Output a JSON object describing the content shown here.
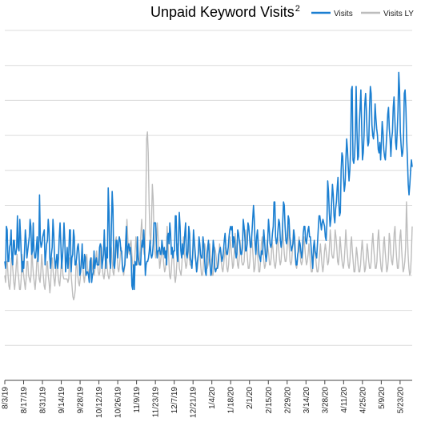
{
  "chart_data": {
    "type": "line",
    "title": "Unpaid Keyword Visits",
    "title_superscript": "2",
    "xlabel": "",
    "ylabel": "",
    "grid": "horizontal",
    "legend_position": "top-right",
    "ylim": [
      0,
      10
    ],
    "x_tick_labels": [
      "8/3/19",
      "8/17/19",
      "8/31/19",
      "9/14/19",
      "9/28/19",
      "10/12/19",
      "10/26/19",
      "11/9/19",
      "11/23/19",
      "12/7/19",
      "12/21/19",
      "1/4/20",
      "1/18/20",
      "2/1/20",
      "2/15/20",
      "2/29/20",
      "3/14/20",
      "3/28/20",
      "4/11/20",
      "4/25/20",
      "5/9/20",
      "5/23/20"
    ],
    "x_start": "8/3/19",
    "x_end": "6/1/20",
    "series": [
      {
        "name": "Visits",
        "color": "#1b7fd1",
        "values": [
          3.4,
          3.2,
          4.4,
          4.3,
          3.4,
          3.4,
          3.8,
          3.9,
          4.3,
          3.5,
          3.3,
          4.0,
          4.0,
          3.6,
          3.6,
          3.8,
          4.7,
          3.8,
          3.7,
          4.6,
          4.1,
          3.5,
          3.1,
          3.4,
          3.2,
          3.7,
          4.3,
          4.0,
          3.5,
          3.7,
          3.9,
          4.1,
          4.6,
          4.4,
          3.6,
          3.7,
          4.5,
          3.7,
          3.5,
          3.5,
          3.8,
          4.1,
          3.4,
          3.8,
          5.3,
          4.0,
          3.8,
          3.9,
          4.1,
          4.2,
          4.3,
          3.3,
          3.6,
          3.9,
          4.0,
          4.6,
          4.3,
          3.5,
          3.2,
          3.6,
          3.8,
          4.6,
          4.2,
          3.5,
          3.2,
          3.4,
          3.6,
          3.2,
          3.5,
          4.1,
          4.5,
          3.9,
          3.2,
          3.5,
          3.9,
          4.5,
          4.0,
          3.1,
          3.4,
          3.8,
          3.2,
          3.6,
          4.3,
          4.3,
          3.1,
          3.5,
          3.6,
          4.3,
          4.1,
          3.3,
          3.3,
          3.5,
          3.8,
          3.9,
          3.6,
          3.0,
          3.1,
          3.4,
          3.9,
          3.2,
          3.2,
          3.6,
          3.5,
          3.0,
          3.1,
          3.1,
          3.0,
          2.8,
          3.4,
          3.5,
          2.8,
          3.0,
          3.1,
          3.7,
          3.2,
          3.4,
          3.5,
          3.3,
          3.3,
          3.3,
          3.8,
          3.9,
          3.8,
          3.2,
          3.4,
          3.6,
          4.3,
          3.6,
          3.2,
          3.8,
          3.5,
          5.5,
          4.8,
          3.4,
          3.2,
          4.4,
          5.4,
          4.9,
          3.3,
          3.2,
          3.5,
          4.0,
          4.0,
          3.5,
          3.9,
          4.1,
          4.0,
          3.7,
          3.7,
          3.2,
          3.1,
          3.2,
          3.3,
          3.9,
          4.4,
          3.5,
          3.8,
          3.9,
          3.7,
          3.8,
          3.5,
          2.7,
          2.6,
          3.3,
          2.6,
          3.4,
          3.3,
          3.3,
          4.1,
          3.5,
          3.4,
          3.3,
          3.3,
          3.8,
          4.0,
          3.8,
          4.3,
          3.8,
          3.0,
          3.3,
          3.4,
          3.4,
          3.5,
          3.7,
          4.0,
          3.6,
          3.5,
          3.6,
          3.9,
          4.5,
          4.5,
          4.5,
          3.9,
          3.5,
          3.7,
          3.7,
          3.8,
          3.6,
          3.6,
          4.0,
          3.8,
          3.6,
          3.8,
          3.5,
          3.7,
          3.3,
          4.1,
          4.2,
          3.9,
          4.5,
          4.2,
          3.6,
          3.8,
          3.5,
          3.7,
          3.7,
          4.7,
          4.7,
          3.6,
          3.4,
          4.0,
          4.8,
          4.4,
          3.7,
          3.5,
          3.9,
          3.6,
          3.8,
          4.2,
          4.5,
          3.6,
          3.5,
          3.7,
          4.4,
          4.2,
          3.5,
          3.4,
          3.2,
          3.6,
          4.3,
          4.0,
          3.7,
          3.4,
          3.1,
          3.4,
          3.6,
          4.1,
          3.9,
          3.6,
          3.5,
          3.5,
          4.1,
          3.9,
          3.5,
          3.1,
          3.0,
          3.4,
          3.8,
          4.0,
          3.5,
          3.3,
          3.0,
          3.1,
          3.5,
          4.0,
          3.8,
          3.2,
          3.1,
          3.2,
          3.2,
          3.3,
          3.6,
          3.7,
          3.8,
          3.6,
          3.4,
          3.5,
          3.7,
          4.0,
          4.2,
          3.8,
          3.6,
          3.6,
          3.8,
          4.1,
          4.3,
          4.4,
          4.3,
          4.4,
          3.8,
          4.1,
          4.0,
          3.7,
          3.5,
          3.6,
          4.3,
          4.2,
          4.0,
          3.8,
          3.6,
          3.6,
          3.8,
          4.6,
          4.4,
          4.1,
          3.7,
          3.7,
          3.9,
          4.5,
          4.4,
          4.1,
          3.8,
          3.8,
          4.2,
          4.6,
          5.0,
          4.6,
          3.9,
          3.6,
          4.1,
          4.3,
          3.9,
          3.6,
          3.5,
          3.4,
          3.7,
          3.6,
          3.8,
          4.3,
          4.0,
          3.6,
          3.4,
          3.6,
          4.0,
          4.6,
          4.3,
          3.9,
          3.8,
          3.9,
          4.2,
          4.4,
          5.1,
          5.1,
          4.1,
          3.9,
          4.0,
          4.3,
          4.6,
          4.5,
          4.0,
          3.8,
          4.0,
          4.5,
          5.1,
          5.0,
          4.4,
          4.0,
          3.9,
          4.1,
          4.7,
          4.6,
          4.1,
          3.9,
          3.7,
          3.8,
          3.9,
          4.3,
          4.1,
          3.6,
          3.3,
          3.3,
          3.6,
          3.7,
          4.0,
          3.9,
          3.7,
          3.5,
          3.7,
          4.2,
          4.4,
          4.4,
          4.0,
          3.9,
          4.1,
          4.3,
          4.4,
          4.1,
          4.1,
          3.8,
          3.5,
          3.2,
          3.8,
          4.0,
          3.7,
          3.6,
          3.5,
          3.9,
          4.3,
          4.7,
          4.7,
          4.5,
          4.3,
          4.5,
          4.6,
          4.5,
          4.4,
          4.1,
          4.0,
          4.5,
          5.7,
          5.4,
          4.8,
          4.4,
          4.6,
          5.1,
          5.6,
          5.3,
          4.7,
          4.5,
          4.9,
          5.1,
          5.5,
          5.8,
          5.1,
          4.7,
          4.8,
          6.0,
          6.5,
          6.4,
          5.8,
          5.4,
          5.6,
          6.3,
          6.9,
          6.6,
          6.1,
          5.7,
          6.0,
          6.6,
          8.3,
          8.4,
          6.3,
          6.2,
          6.4,
          7.0,
          8.4,
          7.2,
          6.3,
          6.4,
          7.3,
          7.8,
          8.3,
          7.3,
          6.3,
          6.5,
          7.0,
          7.9,
          8.2,
          7.7,
          7.0,
          6.7,
          6.8,
          7.8,
          8.4,
          8.2,
          7.3,
          7.0,
          6.9,
          7.2,
          7.9,
          7.5,
          7.2,
          7.0,
          6.6,
          6.5,
          6.8,
          6.3,
          6.8,
          7.4,
          7.1,
          6.6,
          6.4,
          6.3,
          6.7,
          7.1,
          7.6,
          7.8,
          7.2,
          6.9,
          6.4,
          6.9,
          7.1,
          7.8,
          8.1,
          7.5,
          6.8,
          6.6,
          7.1,
          7.7,
          8.8,
          8.3,
          7.1,
          6.7,
          6.4,
          6.5,
          6.9,
          8.2,
          8.3,
          7.8,
          6.9,
          6.3,
          5.6,
          5.3,
          5.6,
          6.0,
          6.3,
          6.1
        ]
      },
      {
        "name": "Visits LY",
        "color": "#bdbdbd",
        "values": [
          3.0,
          2.8,
          3.4,
          3.4,
          3.0,
          2.7,
          2.6,
          2.9,
          3.5,
          3.4,
          3.1,
          2.8,
          2.6,
          2.9,
          3.3,
          3.6,
          3.1,
          2.9,
          2.6,
          2.6,
          2.9,
          3.6,
          3.3,
          3.0,
          2.8,
          2.6,
          2.9,
          3.4,
          3.4,
          3.0,
          2.9,
          2.8,
          3.0,
          3.8,
          3.3,
          3.0,
          2.8,
          2.6,
          2.9,
          3.4,
          3.5,
          3.2,
          2.9,
          2.8,
          3.1,
          3.6,
          3.3,
          3.0,
          2.7,
          2.6,
          2.9,
          3.3,
          3.4,
          3.0,
          2.8,
          2.5,
          2.8,
          3.4,
          3.5,
          3.1,
          2.9,
          2.7,
          3.0,
          3.4,
          3.3,
          3.0,
          2.8,
          2.7,
          3.0,
          3.4,
          3.3,
          3.0,
          2.9,
          2.9,
          2.9,
          2.9,
          2.9,
          2.8,
          2.9,
          3.5,
          3.4,
          3.0,
          2.7,
          2.4,
          2.3,
          2.4,
          2.6,
          3.4,
          3.3,
          3.0,
          2.8,
          2.7,
          2.9,
          3.4,
          3.6,
          3.3,
          3.0,
          2.8,
          3.0,
          3.5,
          3.6,
          3.2,
          3.1,
          3.0,
          3.1,
          3.4,
          3.5,
          3.2,
          3.1,
          3.0,
          3.2,
          3.5,
          3.7,
          3.4,
          3.1,
          3.0,
          3.1,
          3.9,
          3.8,
          3.2,
          3.0,
          2.9,
          3.1,
          3.5,
          3.6,
          3.2,
          3.0,
          2.9,
          3.0,
          3.4,
          3.8,
          3.4,
          3.1,
          3.0,
          3.3,
          4.0,
          4.1,
          3.6,
          3.2,
          3.1,
          3.3,
          3.6,
          3.8,
          3.5,
          3.2,
          3.0,
          3.2,
          3.4,
          3.9,
          4.6,
          4.1,
          3.7,
          3.6,
          3.9,
          4.0,
          3.6,
          3.3,
          3.1,
          3.2,
          3.7,
          4.1,
          3.7,
          3.5,
          3.3,
          3.4,
          3.7,
          4.2,
          4.6,
          4.0,
          3.8,
          3.6,
          3.8,
          5.0,
          6.9,
          7.1,
          6.5,
          5.1,
          4.2,
          3.9,
          4.5,
          5.6,
          5.2,
          4.2,
          3.7,
          3.5,
          3.8,
          4.5,
          4.1,
          3.6,
          3.2,
          3.4,
          3.6,
          3.8,
          3.6,
          3.3,
          3.1,
          3.2,
          3.6,
          4.4,
          4.0,
          3.5,
          3.0,
          2.9,
          3.1,
          3.5,
          3.7,
          3.5,
          3.0,
          2.8,
          3.0,
          3.4,
          3.9,
          3.6,
          3.2,
          3.1,
          3.0,
          3.3,
          3.8,
          4.1,
          3.7,
          3.4,
          3.2,
          3.3,
          3.7,
          4.0,
          3.5,
          3.3,
          3.3,
          3.2,
          3.5,
          3.9,
          4.0,
          3.5,
          3.4,
          3.1,
          3.2,
          3.5,
          4.0,
          3.7,
          3.3,
          3.0,
          3.0,
          3.2,
          3.6,
          3.9,
          3.7,
          3.5,
          3.2,
          3.3,
          3.5,
          3.9,
          3.6,
          3.4,
          3.0,
          3.0,
          3.3,
          3.8,
          3.7,
          3.5,
          3.2,
          3.2,
          3.4,
          3.9,
          3.7,
          3.4,
          3.2,
          3.1,
          3.3,
          3.6,
          3.8,
          3.5,
          3.2,
          3.1,
          3.3,
          3.7,
          4.1,
          3.8,
          3.5,
          3.2,
          3.3,
          3.7,
          4.2,
          3.9,
          3.6,
          3.3,
          3.2,
          3.5,
          4.0,
          3.8,
          3.4,
          3.3,
          3.3,
          3.4,
          3.9,
          4.3,
          3.8,
          3.5,
          3.2,
          3.2,
          3.4,
          3.9,
          4.1,
          3.9,
          3.5,
          3.1,
          3.2,
          3.5,
          4.0,
          3.7,
          3.4,
          3.1,
          3.1,
          3.4,
          3.9,
          4.1,
          3.7,
          3.4,
          3.2,
          3.3,
          3.6,
          4.0,
          3.8,
          3.6,
          3.3,
          3.3,
          3.5,
          4.0,
          3.8,
          3.5,
          3.3,
          3.2,
          3.4,
          3.9,
          4.1,
          3.8,
          3.5,
          3.3,
          3.4,
          3.8,
          4.3,
          4.0,
          3.6,
          3.4,
          3.4,
          3.6,
          4.1,
          4.4,
          3.8,
          3.4,
          3.3,
          3.4,
          3.8,
          4.3,
          4.0,
          3.6,
          3.3,
          3.2,
          3.4,
          3.9,
          4.1,
          3.7,
          3.4,
          3.3,
          3.4,
          3.8,
          4.1,
          3.8,
          3.5,
          3.3,
          3.4,
          3.6,
          3.9,
          3.6,
          3.3,
          3.1,
          3.1,
          3.3,
          3.6,
          3.9,
          3.6,
          3.3,
          3.1,
          3.1,
          3.3,
          3.6,
          3.9,
          3.6,
          3.3,
          3.1,
          3.3,
          3.7,
          3.9,
          3.7,
          3.5,
          3.3,
          3.4,
          3.8,
          4.3,
          4.0,
          3.6,
          3.5,
          3.5,
          3.8,
          4.3,
          4.1,
          3.8,
          3.4,
          3.3,
          3.6,
          4.1,
          3.8,
          3.5,
          3.3,
          3.2,
          3.4,
          3.8,
          4.3,
          3.9,
          3.6,
          3.3,
          3.2,
          3.4,
          3.9,
          4.1,
          3.7,
          3.4,
          3.1,
          3.1,
          3.4,
          3.8,
          3.6,
          3.3,
          3.1,
          3.1,
          3.3,
          3.7,
          4.0,
          3.7,
          3.4,
          3.1,
          3.2,
          3.5,
          3.9,
          3.7,
          3.4,
          3.2,
          3.2,
          3.4,
          3.9,
          4.2,
          3.8,
          3.5,
          3.2,
          3.2,
          3.4,
          4.0,
          4.3,
          3.9,
          3.5,
          3.2,
          3.1,
          3.4,
          3.9,
          4.1,
          3.7,
          3.4,
          3.1,
          3.2,
          3.5,
          4.2,
          4.0,
          3.6,
          3.4,
          3.3,
          3.6,
          4.2,
          4.4,
          3.9,
          3.5,
          3.2,
          3.2,
          3.5,
          4.1,
          4.3,
          3.8,
          3.4,
          3.1,
          3.2,
          3.4,
          3.8,
          5.1,
          4.3,
          3.6,
          3.2,
          3.0,
          3.1,
          3.6,
          4.4
        ]
      }
    ]
  }
}
